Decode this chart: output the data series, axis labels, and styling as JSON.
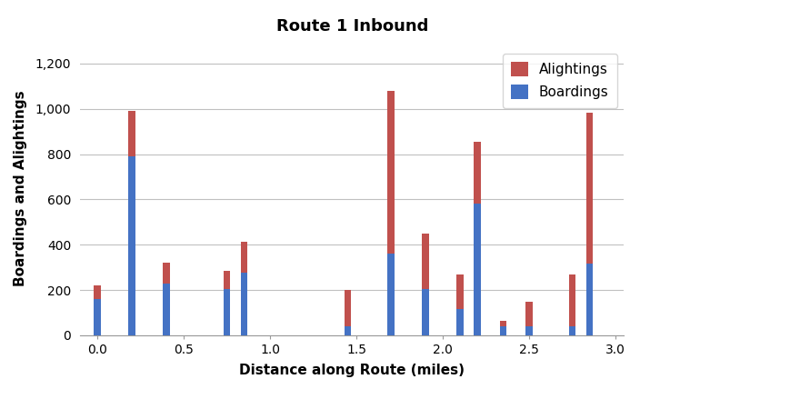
{
  "title": "Route 1 Inbound",
  "xlabel": "Distance along Route (miles)",
  "ylabel": "Boardings and Alightings",
  "bar_width": 0.038,
  "xlim": [
    -0.1,
    3.05
  ],
  "ylim": [
    0,
    1300
  ],
  "yticks": [
    0,
    200,
    400,
    600,
    800,
    1000,
    1200
  ],
  "xticks": [
    0.0,
    0.5,
    1.0,
    1.5,
    2.0,
    2.5,
    3.0
  ],
  "distances": [
    0.0,
    0.2,
    0.4,
    0.75,
    0.85,
    1.45,
    1.7,
    1.9,
    2.1,
    2.2,
    2.35,
    2.5,
    2.75,
    2.85
  ],
  "boardings": [
    160,
    790,
    230,
    205,
    275,
    40,
    360,
    205,
    115,
    580,
    40,
    40,
    40,
    315
  ],
  "alightings": [
    60,
    200,
    90,
    80,
    140,
    160,
    720,
    245,
    155,
    275,
    25,
    110,
    230,
    670
  ],
  "boardings_color": "#4472C4",
  "alightings_color": "#C0504D",
  "background_color": "#FFFFFF",
  "grid_color": "#C0C0C0",
  "title_fontsize": 13,
  "label_fontsize": 11,
  "tick_fontsize": 10,
  "legend_labels": [
    "Alightings",
    "Boardings"
  ]
}
